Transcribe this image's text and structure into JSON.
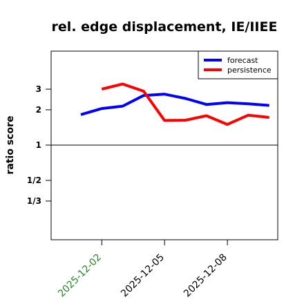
{
  "chart_data": {
    "type": "line",
    "title": "rel. edge displacement, IE/IIEE",
    "ylabel": "ratio score",
    "xlabel": "",
    "x": [
      "2025-12-01",
      "2025-12-02",
      "2025-12-03",
      "2025-12-04",
      "2025-12-05",
      "2025-12-06",
      "2025-12-07",
      "2025-12-08",
      "2025-12-09",
      "2025-12-10"
    ],
    "xticks": [
      {
        "date": "2025-12-02",
        "label": "2025-12-02",
        "color": "#228B22"
      },
      {
        "date": "2025-12-05",
        "label": "2025-12-05",
        "color": "#000000"
      },
      {
        "date": "2025-12-08",
        "label": "2025-12-08",
        "color": "#000000"
      }
    ],
    "yscale": "log",
    "ylim": [
      0.22,
      4.0
    ],
    "yticks": [
      {
        "value": 0.3333,
        "label": "1/3"
      },
      {
        "value": 0.5,
        "label": "1/2"
      },
      {
        "value": 1,
        "label": "1"
      },
      {
        "value": 2,
        "label": "2"
      },
      {
        "value": 3,
        "label": "3"
      }
    ],
    "reference_line": 1,
    "grid": false,
    "legend_position": "top-right",
    "series": [
      {
        "name": "forecast",
        "color": "#0000FF",
        "values": [
          1.82,
          2.05,
          2.15,
          2.65,
          2.72,
          2.5,
          2.22,
          2.3,
          2.25,
          2.18
        ]
      },
      {
        "name": "persistence",
        "color": "#FF0000",
        "values": [
          null,
          3.0,
          3.32,
          2.88,
          1.62,
          1.63,
          1.78,
          1.5,
          1.8,
          1.72
        ]
      }
    ]
  }
}
